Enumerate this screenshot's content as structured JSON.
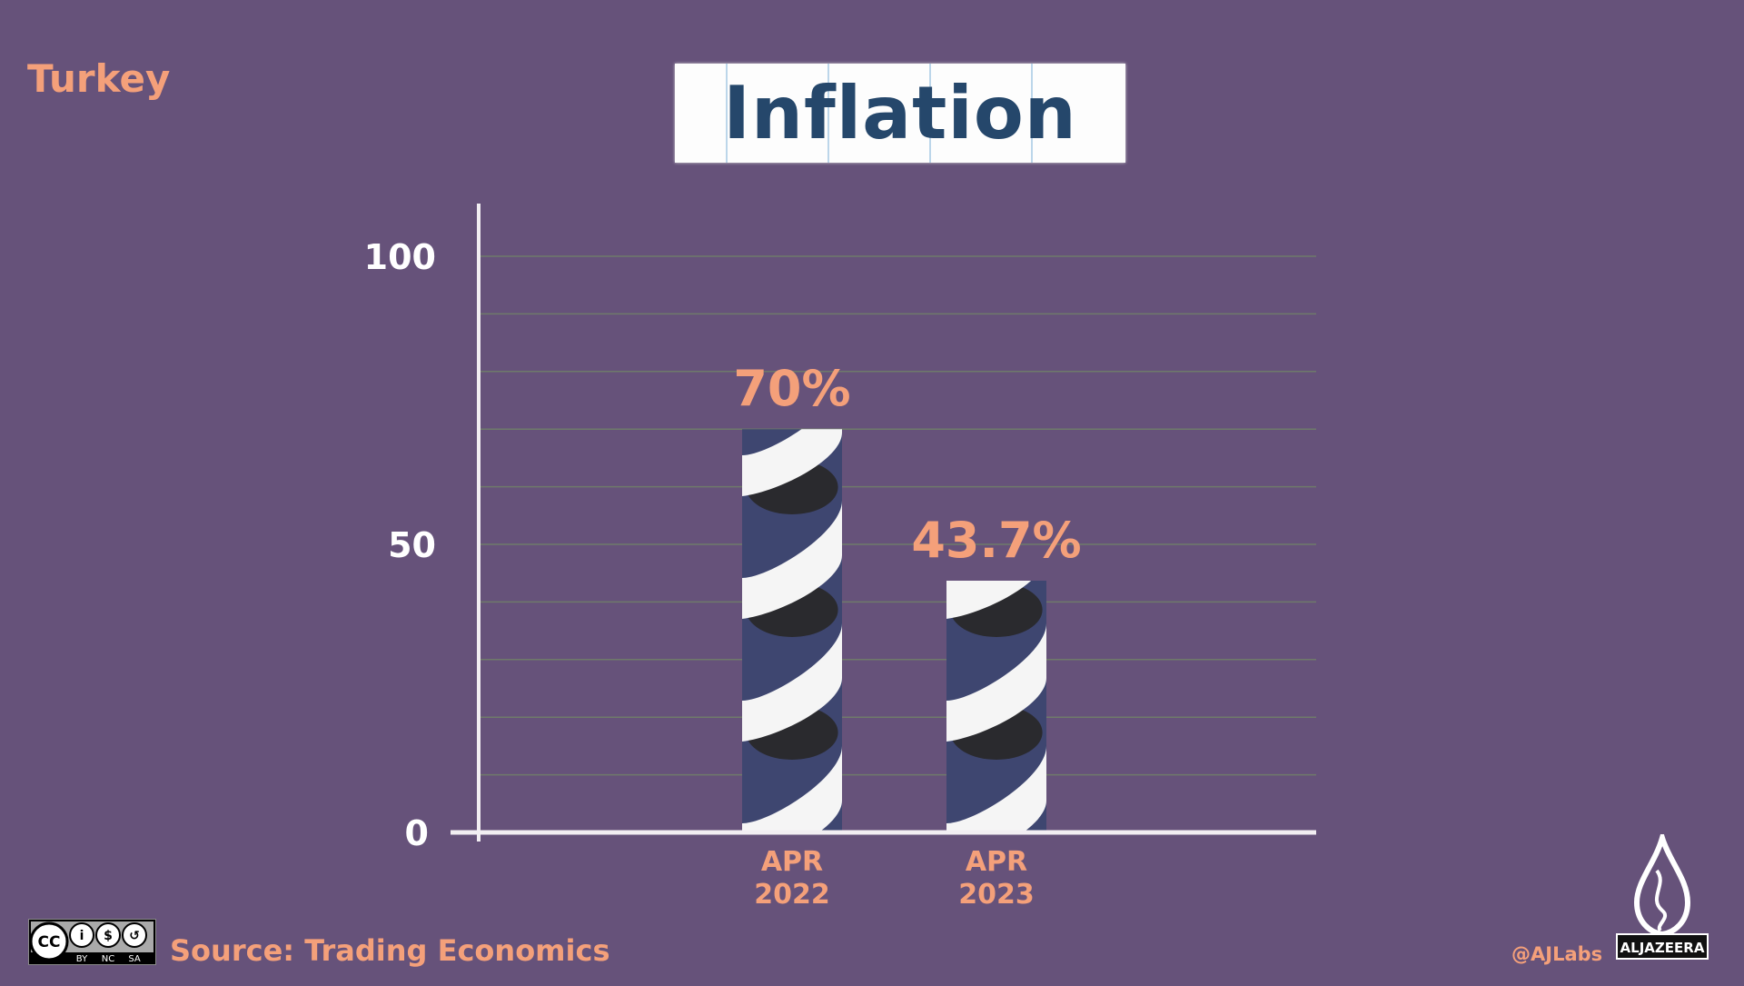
{
  "header": {
    "country": "Turkey",
    "title": "Inflation"
  },
  "chart_data": {
    "type": "bar",
    "title": "Inflation",
    "categories": [
      "APR 2022",
      "APR 2023"
    ],
    "category_lines": [
      [
        "APR",
        "2022"
      ],
      [
        "APR",
        "2023"
      ]
    ],
    "values": [
      70,
      43.7
    ],
    "value_labels": [
      "70%",
      "43.7%"
    ],
    "xlabel": "",
    "ylabel": "",
    "ylim": [
      0,
      100
    ],
    "yticks": [
      0,
      50,
      100
    ],
    "ytick_labels": [
      "0",
      "50",
      "100"
    ],
    "grid": true,
    "grid_step": 10,
    "colors": {
      "background": "#66527a",
      "label": "#f4a07a",
      "bar_base": "#3e4670",
      "bar_band": "#f5f5f5",
      "bar_dark": "#2a2a2e",
      "axis": "#f2eef2"
    }
  },
  "footer": {
    "license": {
      "label": "CC",
      "terms": [
        "BY",
        "NC",
        "SA"
      ]
    },
    "source": "Source: Trading Economics",
    "handle": "@AJLabs",
    "brand": "ALJAZEERA"
  }
}
